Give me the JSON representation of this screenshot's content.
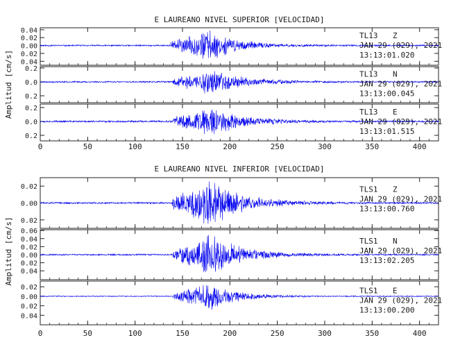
{
  "chart_data": [
    {
      "type": "line",
      "title": "E LAUREANO NIVEL SUPERIOR [VELOCIDAD]",
      "ylabel": "Amplitud [cm/s]",
      "xlim": [
        0,
        420
      ],
      "xticks": [
        0,
        50,
        100,
        150,
        200,
        250,
        300,
        350,
        400
      ],
      "color": "#0000ee",
      "panels": [
        {
          "station": "TL13",
          "component": "Z",
          "date": "JAN 29 (029), 2021",
          "time": "13:13:01.020",
          "ylim": [
            -0.05,
            0.045
          ],
          "yticks": [
            0.04,
            0.02,
            0.0,
            -0.02,
            -0.04
          ],
          "yticklabels": [
            "0.04",
            "0.02",
            "0.00",
            "0.02",
            "0.04"
          ],
          "envelope": {
            "noise": 0.0022,
            "onset": 138,
            "peak_start": 170,
            "peak_end": 182,
            "peak": 0.04,
            "decay": 0.035
          },
          "seed": 11
        },
        {
          "station": "TL13",
          "component": "N",
          "date": "JAN 29 (029), 2021",
          "time": "13:13:00.045",
          "ylim": [
            -0.3,
            0.22
          ],
          "yticks": [
            0.2,
            0.0,
            -0.2
          ],
          "yticklabels": [
            "0.2",
            "0.0",
            "0.2"
          ],
          "envelope": {
            "noise": 0.012,
            "onset": 140,
            "peak_start": 172,
            "peak_end": 180,
            "peak": 0.2,
            "decay": 0.028
          },
          "seed": 23
        },
        {
          "station": "TL13",
          "component": "E",
          "date": "JAN 29 (029), 2021",
          "time": "13:13:01.515",
          "ylim": [
            -0.28,
            0.25
          ],
          "yticks": [
            0.2,
            0.0,
            -0.2
          ],
          "yticklabels": [
            "0.2",
            "0.0",
            "0.2"
          ],
          "envelope": {
            "noise": 0.014,
            "onset": 140,
            "peak_start": 172,
            "peak_end": 185,
            "peak": 0.22,
            "decay": 0.03
          },
          "seed": 37
        }
      ]
    },
    {
      "type": "line",
      "title": "E LAUREANO NIVEL INFERIOR [VELOCIDAD]",
      "ylabel": "Amplitud [cm/s]",
      "xlim": [
        0,
        420
      ],
      "xticks": [
        0,
        50,
        100,
        150,
        200,
        250,
        300,
        350,
        400
      ],
      "color": "#0000ee",
      "panels": [
        {
          "station": "TLS1",
          "component": "Z",
          "date": "JAN 29 (029), 2021",
          "time": "13:13:00.760",
          "ylim": [
            -0.03,
            0.03
          ],
          "yticks": [
            0.02,
            0.0,
            -0.02
          ],
          "yticklabels": [
            "0.02",
            "0.00",
            "0.02"
          ],
          "envelope": {
            "noise": 0.0012,
            "onset": 139,
            "peak_start": 172,
            "peak_end": 185,
            "peak": 0.028,
            "decay": 0.03
          },
          "seed": 51
        },
        {
          "station": "TLS1",
          "component": "N",
          "date": "JAN 29 (029), 2021",
          "time": "13:13:02.205",
          "ylim": [
            -0.062,
            0.062
          ],
          "yticks": [
            0.06,
            0.04,
            0.02,
            0.0,
            -0.02,
            -0.04
          ],
          "yticklabels": [
            "0.06",
            "0.04",
            "0.02",
            "0.00",
            "0.02",
            "0.04"
          ],
          "envelope": {
            "noise": 0.002,
            "onset": 140,
            "peak_start": 172,
            "peak_end": 185,
            "peak": 0.05,
            "decay": 0.03
          },
          "seed": 67
        },
        {
          "station": "TLS1",
          "component": "E",
          "date": "JAN 29 (029), 2021",
          "time": "13:13:00.200",
          "ylim": [
            -0.06,
            0.032
          ],
          "yticks": [
            0.02,
            0.0,
            -0.02,
            -0.04
          ],
          "yticklabels": [
            "0.02",
            "0.00",
            "0.02",
            "0.04"
          ],
          "envelope": {
            "noise": 0.0012,
            "onset": 140,
            "peak_start": 172,
            "peak_end": 182,
            "peak": 0.03,
            "decay": 0.035
          },
          "seed": 83
        }
      ]
    }
  ]
}
